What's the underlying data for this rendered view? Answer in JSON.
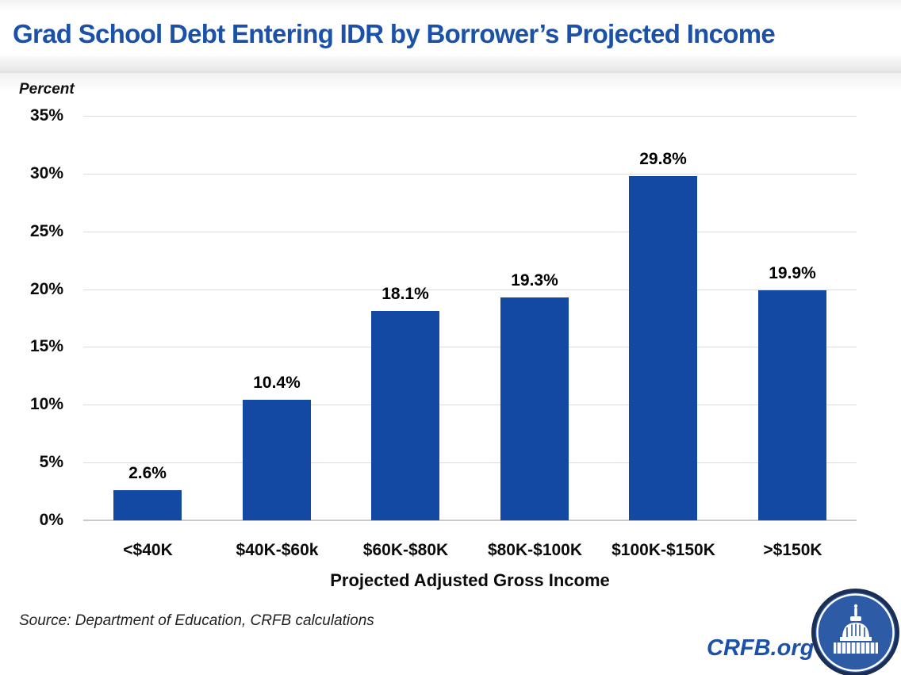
{
  "chart_data": {
    "type": "bar",
    "title": "Grad School Debt Entering IDR by Borrower’s Projected Income",
    "categories": [
      "<$40K",
      "$40K-$60k",
      "$60K-$80K",
      "$80K-$100K",
      "$100K-$150K",
      ">$150K"
    ],
    "values": [
      2.6,
      10.4,
      18.1,
      19.3,
      29.8,
      19.9
    ],
    "value_labels": [
      "2.6%",
      "10.4%",
      "18.1%",
      "19.3%",
      "29.8%",
      "19.9%"
    ],
    "xlabel": "Projected Adjusted Gross Income",
    "ylabel": "Percent",
    "ylim": [
      0,
      35
    ],
    "ytick_step": 5,
    "ytick_labels": [
      "0%",
      "5%",
      "10%",
      "15%",
      "20%",
      "25%",
      "30%",
      "35%"
    ],
    "grid": true,
    "legend": "none",
    "bar_color": "#1348A3"
  },
  "footer": {
    "source": "Source: Department of Education, CRFB calculations",
    "brand": "CRFB.org"
  },
  "icons": {
    "logo": "capitol-dome-badge-icon"
  },
  "colors": {
    "title_blue": "#1B51A8",
    "bar_blue": "#1348A3",
    "brand_blue": "#1B51A8",
    "gridline_gray": "#DCDCDC",
    "logo_fill": "#2D5BA6",
    "logo_ring": "#1B2F55"
  }
}
